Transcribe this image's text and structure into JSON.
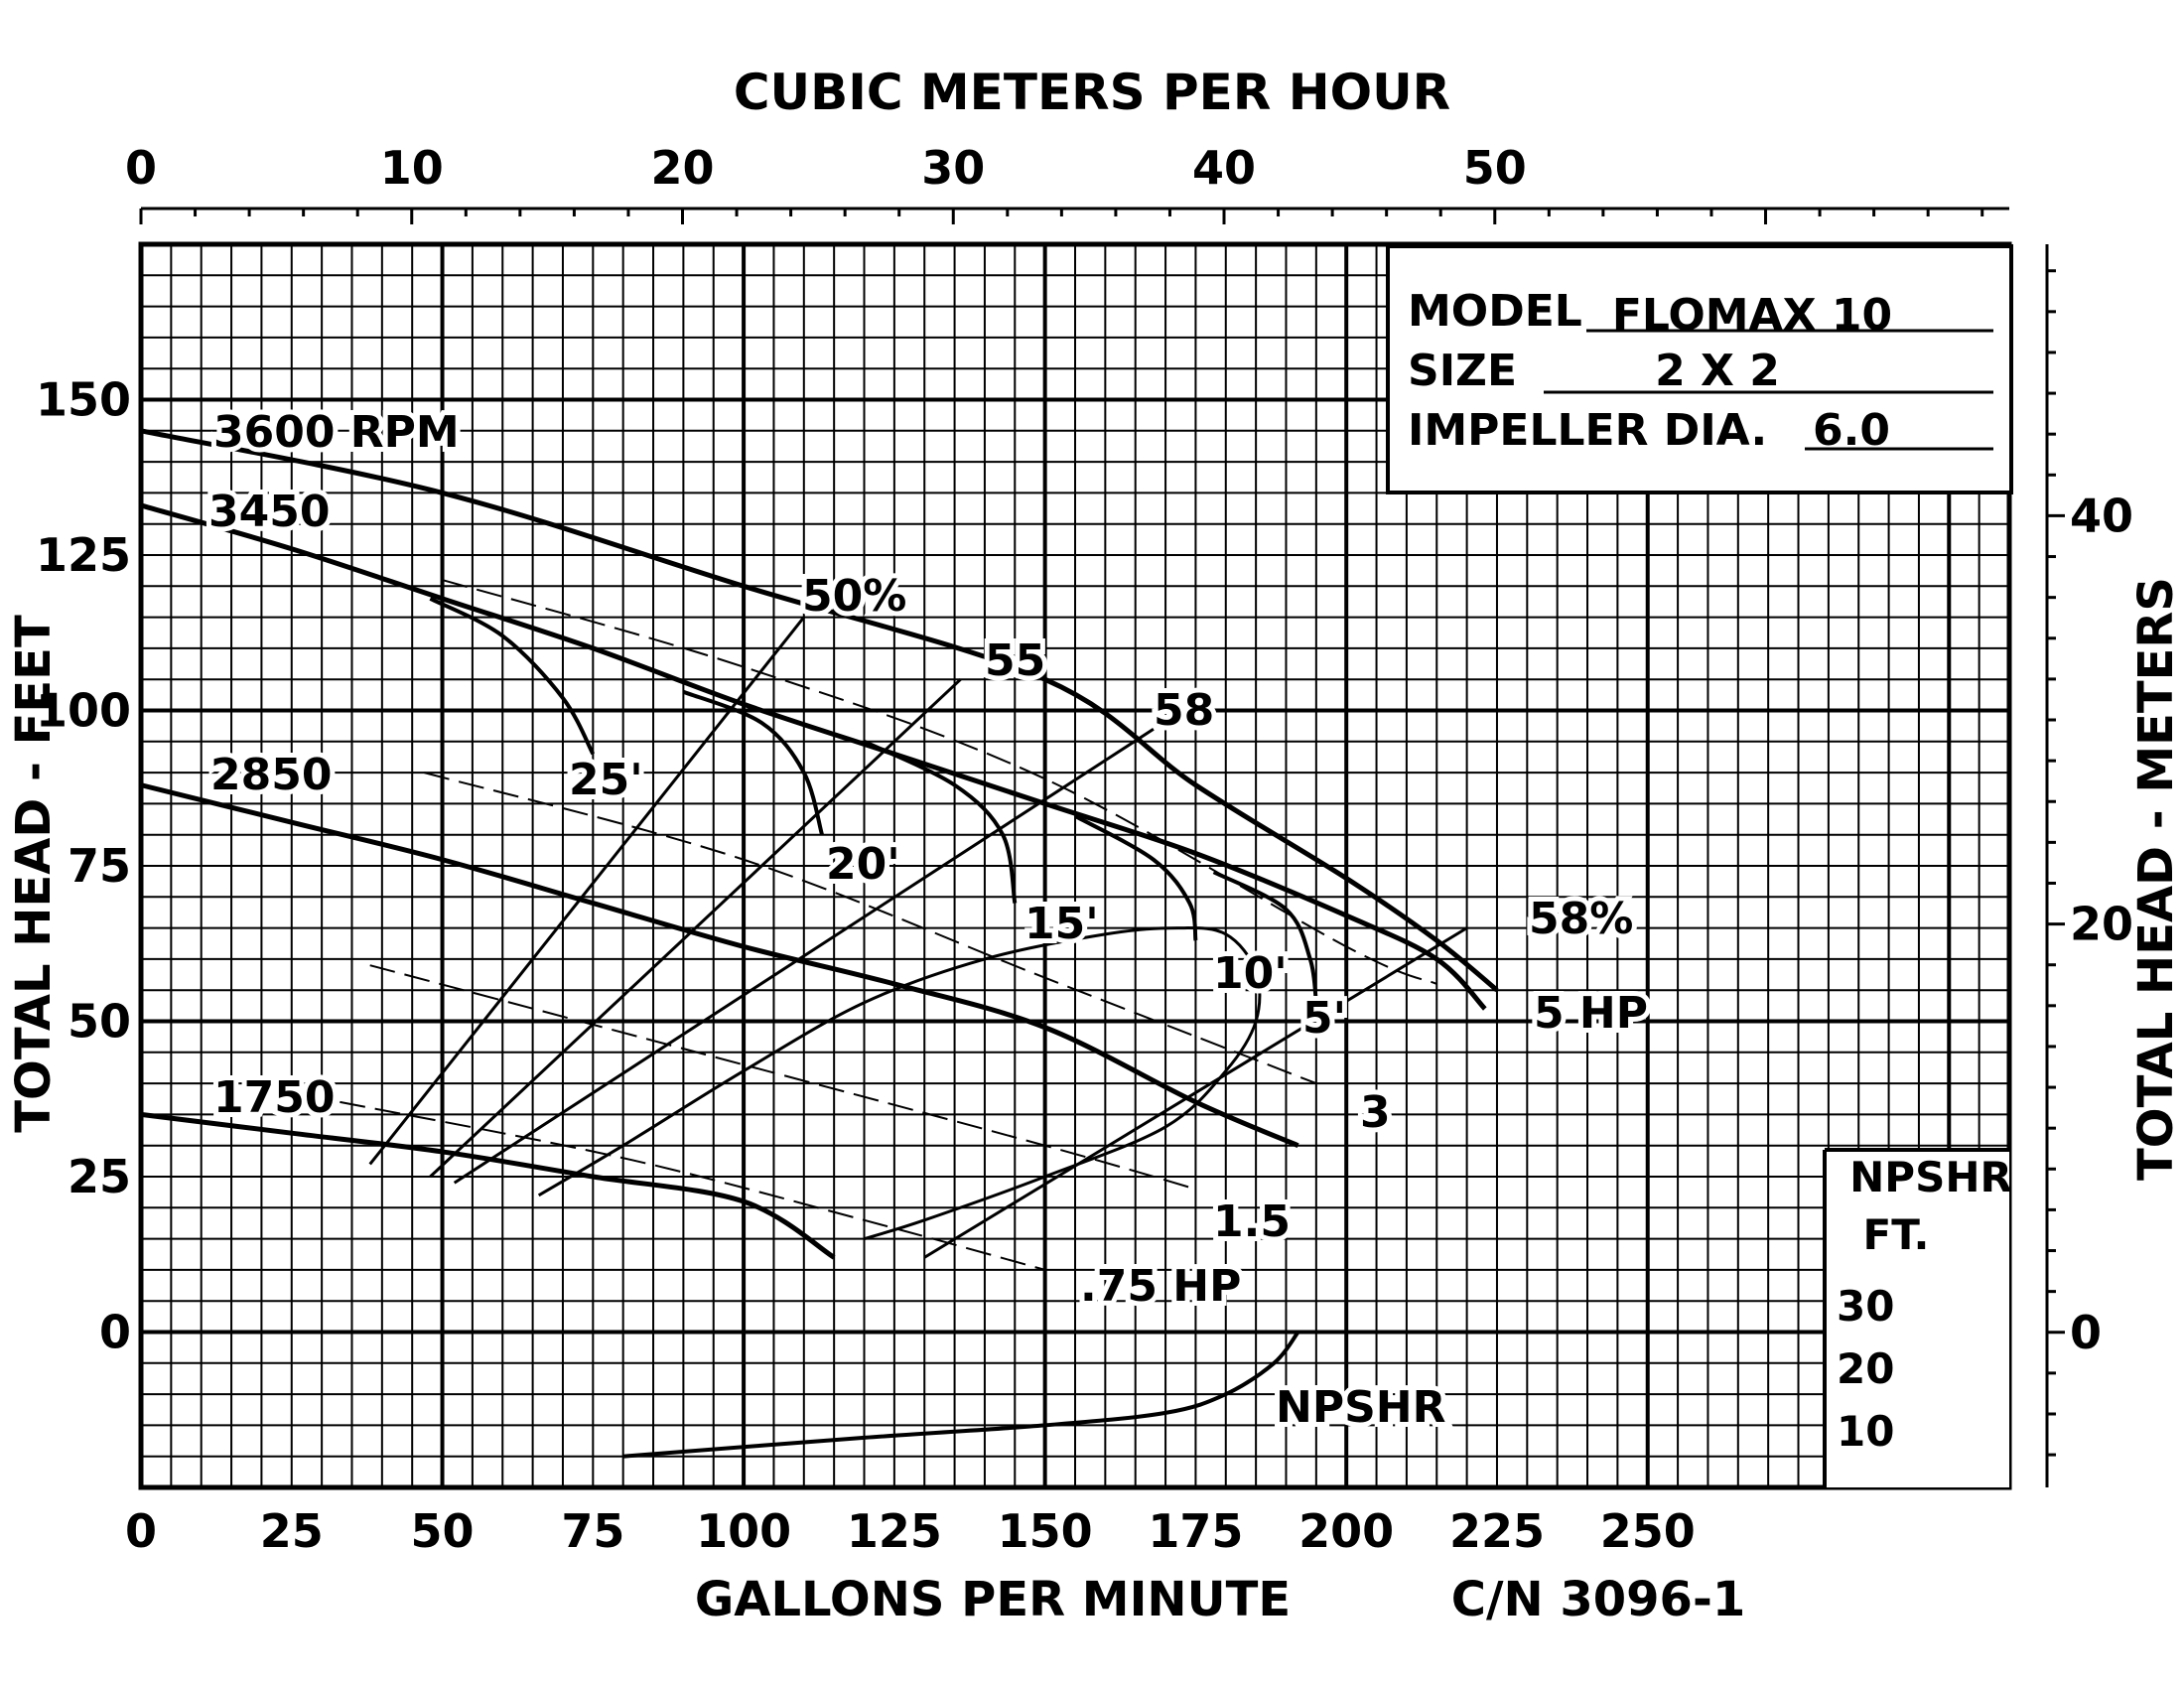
{
  "chart_data": {
    "type": "line",
    "title": "",
    "top_axis": {
      "label": "CUBIC METERS PER HOUR",
      "ticks": [
        0,
        10,
        20,
        30,
        40,
        50
      ],
      "range": [
        0,
        69
      ]
    },
    "bottom_axis": {
      "label": "GALLONS PER MINUTE",
      "ticks": [
        0,
        25,
        50,
        75,
        100,
        125,
        150,
        175,
        200,
        225,
        250
      ],
      "range": [
        0,
        310
      ]
    },
    "left_axis": {
      "label": "TOTAL HEAD - FEET",
      "ticks": [
        0,
        25,
        50,
        75,
        100,
        125,
        150
      ],
      "range": [
        -25,
        175
      ]
    },
    "right_axis": {
      "label": "TOTAL HEAD - METERS",
      "ticks": [
        0,
        20,
        40
      ],
      "range": [
        -7.6,
        53.3
      ]
    },
    "info_box": {
      "model_label": "MODEL",
      "model_value": "FLOMAX 10",
      "size_label": "SIZE",
      "size_value": "2 X 2",
      "impeller_label": "IMPELLER DIA.",
      "impeller_value": "6.0"
    },
    "npshr_scale": {
      "title_line1": "NPSHR",
      "title_line2": "FT.",
      "ticks": [
        "30",
        "20",
        "10"
      ]
    },
    "cn_label": "C/N 3096-1",
    "speed_curves": [
      {
        "name": "3600 RPM",
        "points": [
          [
            0,
            145
          ],
          [
            50,
            135
          ],
          [
            100,
            120
          ],
          [
            150,
            105
          ],
          [
            175,
            88
          ],
          [
            200,
            73
          ],
          [
            215,
            63
          ],
          [
            225,
            55
          ]
        ]
      },
      {
        "name": "3450",
        "points": [
          [
            0,
            133
          ],
          [
            25,
            126
          ],
          [
            50,
            118
          ],
          [
            75,
            110
          ],
          [
            100,
            101
          ],
          [
            125,
            93
          ],
          [
            150,
            85
          ],
          [
            175,
            77
          ],
          [
            200,
            67
          ],
          [
            215,
            60
          ],
          [
            223,
            52
          ]
        ]
      },
      {
        "name": "2850",
        "points": [
          [
            0,
            88
          ],
          [
            25,
            82
          ],
          [
            50,
            76
          ],
          [
            75,
            69
          ],
          [
            100,
            62
          ],
          [
            125,
            56
          ],
          [
            150,
            49
          ],
          [
            175,
            37
          ],
          [
            192,
            30
          ]
        ]
      },
      {
        "name": "1750",
        "points": [
          [
            0,
            35
          ],
          [
            25,
            32
          ],
          [
            50,
            29
          ],
          [
            75,
            25
          ],
          [
            100,
            21
          ],
          [
            115,
            12
          ]
        ]
      }
    ],
    "efficiency_lines": [
      {
        "name": "50%",
        "points": [
          [
            38,
            27
          ],
          [
            110,
            115
          ]
        ]
      },
      {
        "name": "55",
        "points": [
          [
            48,
            25
          ],
          [
            136,
            105
          ]
        ]
      },
      {
        "name": "58",
        "points": [
          [
            52,
            24
          ],
          [
            168,
            97
          ]
        ]
      },
      {
        "name": "58%",
        "points": [
          [
            130,
            12
          ],
          [
            220,
            65
          ]
        ]
      }
    ],
    "efficiency_loop_points": [
      [
        66,
        22
      ],
      [
        80,
        30
      ],
      [
        100,
        42
      ],
      [
        120,
        53
      ],
      [
        140,
        60
      ],
      [
        160,
        64
      ],
      [
        172,
        65
      ],
      [
        180,
        64
      ],
      [
        185,
        58
      ],
      [
        185,
        50
      ],
      [
        180,
        42
      ],
      [
        170,
        33
      ],
      [
        150,
        25
      ],
      [
        130,
        18
      ],
      [
        120,
        15
      ]
    ],
    "npsh_contours": [
      {
        "name": "25'",
        "points": [
          [
            48,
            118
          ],
          [
            60,
            112
          ],
          [
            70,
            102
          ],
          [
            75,
            93
          ]
        ]
      },
      {
        "name": "20'",
        "points": [
          [
            90,
            103
          ],
          [
            103,
            98
          ],
          [
            110,
            90
          ],
          [
            113,
            80
          ]
        ]
      },
      {
        "name": "15'",
        "points": [
          [
            120,
            95
          ],
          [
            135,
            88
          ],
          [
            143,
            80
          ],
          [
            145,
            69
          ]
        ]
      },
      {
        "name": "10'",
        "points": [
          [
            155,
            83
          ],
          [
            168,
            76
          ],
          [
            174,
            69
          ],
          [
            175,
            63
          ]
        ]
      },
      {
        "name": "5'",
        "points": [
          [
            178,
            74
          ],
          [
            190,
            68
          ],
          [
            194,
            60
          ],
          [
            195,
            53
          ]
        ]
      }
    ],
    "hp_lines": [
      {
        "name": "5 HP",
        "points": [
          [
            50,
            121
          ],
          [
            100,
            107
          ],
          [
            150,
            89
          ],
          [
            200,
            62
          ],
          [
            215,
            56
          ]
        ]
      },
      {
        "name": "3",
        "points": [
          [
            47,
            90
          ],
          [
            100,
            76
          ],
          [
            150,
            57
          ],
          [
            195,
            40
          ]
        ]
      },
      {
        "name": "1.5",
        "points": [
          [
            38,
            59
          ],
          [
            100,
            43
          ],
          [
            150,
            30
          ],
          [
            175,
            23
          ]
        ]
      },
      {
        "name": ".75 HP",
        "points": [
          [
            33,
            37
          ],
          [
            80,
            28
          ],
          [
            120,
            18
          ],
          [
            150,
            10
          ]
        ]
      }
    ],
    "npshr_curve": {
      "label": "NPSHR",
      "points": [
        [
          80,
          -20
        ],
        [
          120,
          -17
        ],
        [
          150,
          -15
        ],
        [
          170,
          -13
        ],
        [
          180,
          -10
        ],
        [
          188,
          -5
        ],
        [
          192,
          0
        ]
      ]
    },
    "grid": true
  }
}
